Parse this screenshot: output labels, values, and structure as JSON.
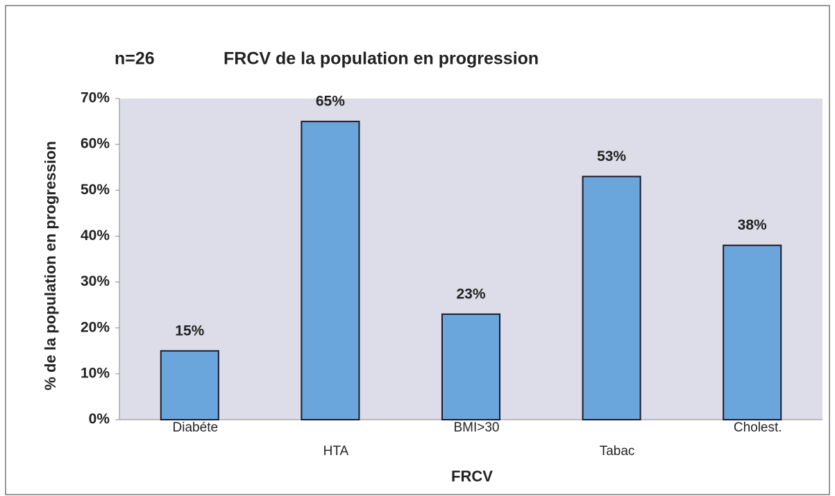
{
  "chart_data": {
    "type": "bar",
    "title": "FRCV de la population en progression",
    "subtitle": "n=26",
    "x_label": "FRCV",
    "y_label": "% de la population en progression",
    "categories": [
      "Diabéte",
      "HTA",
      "BMI>30",
      "Tabac",
      "Cholest."
    ],
    "values": [
      15,
      65,
      23,
      53,
      38
    ],
    "value_labels": [
      "15%",
      "65%",
      "23%",
      "53%",
      "38%"
    ],
    "color": "#6aa6dc",
    "ylim": [
      0,
      70
    ],
    "yticks": [
      {
        "value": 0,
        "label": "0%"
      },
      {
        "value": 10,
        "label": "10%"
      },
      {
        "value": 20,
        "label": "20%"
      },
      {
        "value": 30,
        "label": "30%"
      },
      {
        "value": 40,
        "label": "40%"
      },
      {
        "value": 50,
        "label": "50%"
      },
      {
        "value": 60,
        "label": "60%"
      },
      {
        "value": 70,
        "label": "70%"
      }
    ],
    "grid": false
  }
}
